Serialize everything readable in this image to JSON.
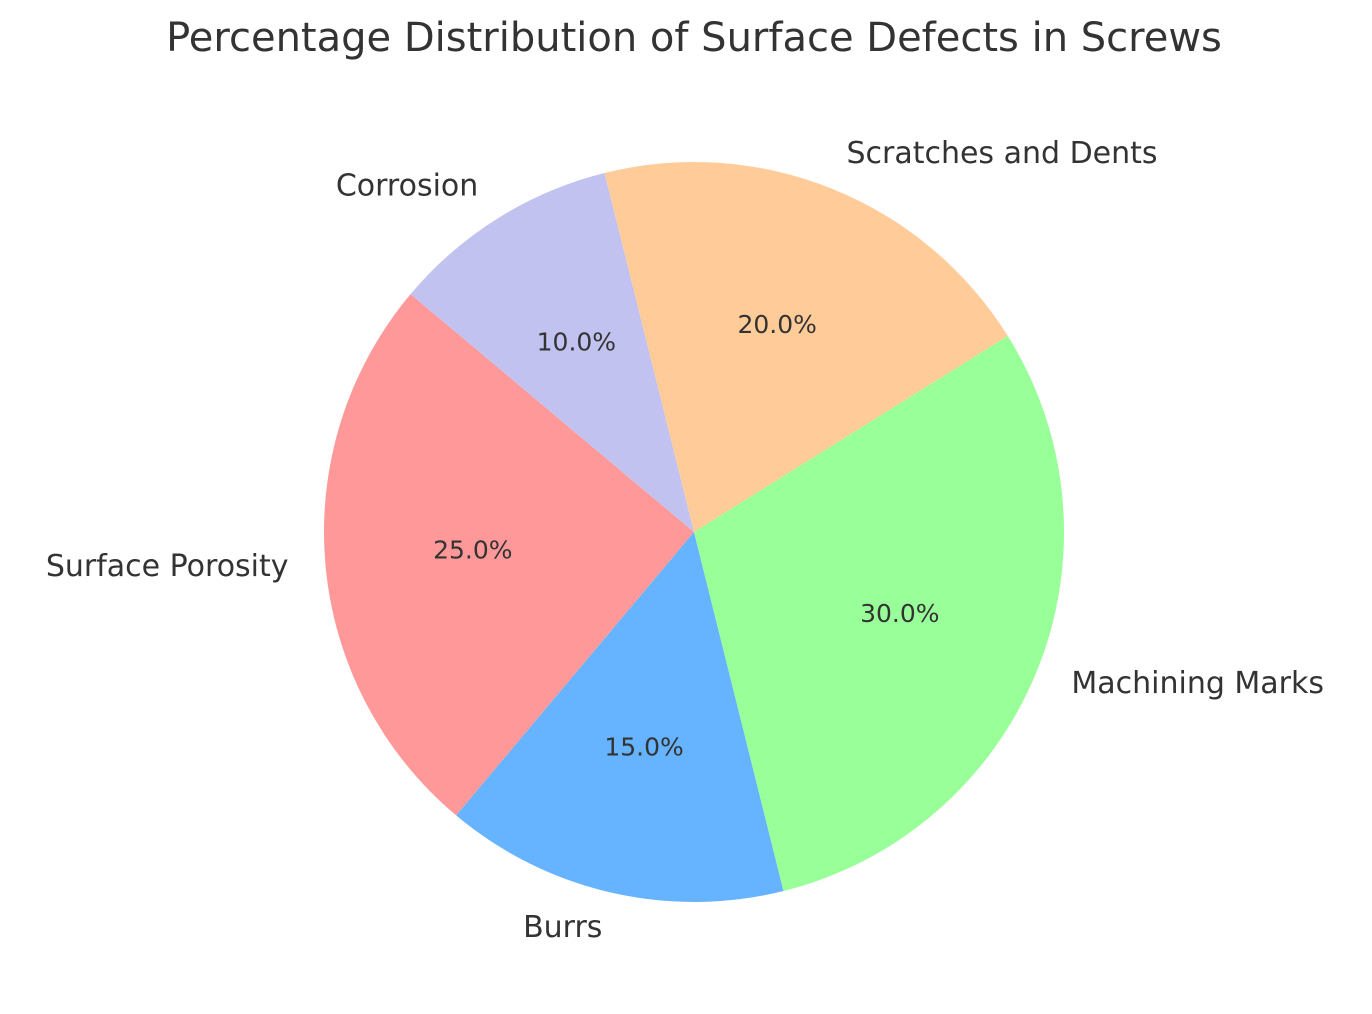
{
  "chart_data": {
    "type": "pie",
    "title": "Percentage Distribution of Surface Defects in Screws",
    "categories": [
      "Surface Porosity",
      "Burrs",
      "Machining Marks",
      "Scratches and Dents",
      "Corrosion"
    ],
    "values": [
      25,
      15,
      30,
      20,
      10
    ],
    "value_labels": [
      "25.0%",
      "15.0%",
      "30.0%",
      "20.0%",
      "10.0%"
    ],
    "colors": [
      "#ff9999",
      "#66b3ff",
      "#99ff99",
      "#ffcc99",
      "#c2c2f0"
    ]
  }
}
